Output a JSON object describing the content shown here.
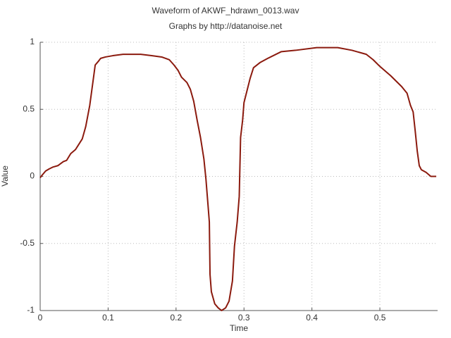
{
  "chart_data": {
    "type": "line",
    "title": "Waveform of AKWF_hdrawn_0013.wav",
    "subtitle": "Graphs by http://datanoise.net",
    "x_label": "Time",
    "y_label": "Value",
    "xlim": [
      0,
      0.585
    ],
    "ylim": [
      -1,
      1
    ],
    "xticks": [
      0,
      0.1,
      0.2,
      0.3,
      0.4,
      0.5
    ],
    "yticks": [
      -1,
      -0.5,
      0,
      0.5,
      1
    ],
    "grid": true,
    "series": [
      {
        "color": "#8b1a0e",
        "x": [
          0,
          0.003,
          0.008,
          0.013,
          0.019,
          0.026,
          0.034,
          0.039,
          0.045,
          0.052,
          0.057,
          0.062,
          0.067,
          0.073,
          0.077,
          0.081,
          0.086,
          0.089,
          0.096,
          0.107,
          0.122,
          0.148,
          0.164,
          0.179,
          0.19,
          0.197,
          0.203,
          0.208,
          0.216,
          0.221,
          0.226,
          0.231,
          0.236,
          0.241,
          0.244,
          0.247,
          0.249,
          0.25,
          0.252,
          0.257,
          0.262,
          0.267,
          0.273,
          0.278,
          0.283,
          0.286,
          0.29,
          0.293,
          0.295,
          0.298,
          0.3,
          0.304,
          0.309,
          0.314,
          0.324,
          0.335,
          0.355,
          0.376,
          0.407,
          0.438,
          0.459,
          0.48,
          0.49,
          0.5,
          0.516,
          0.532,
          0.54,
          0.545,
          0.549,
          0.552,
          0.555,
          0.558,
          0.561,
          0.568,
          0.575,
          0.583
        ],
        "values": [
          -0.01,
          0.01,
          0.04,
          0.055,
          0.07,
          0.08,
          0.11,
          0.12,
          0.17,
          0.2,
          0.24,
          0.28,
          0.37,
          0.53,
          0.68,
          0.83,
          0.86,
          0.88,
          0.89,
          0.9,
          0.91,
          0.91,
          0.9,
          0.89,
          0.87,
          0.83,
          0.79,
          0.74,
          0.7,
          0.65,
          0.56,
          0.42,
          0.29,
          0.13,
          -0.02,
          -0.21,
          -0.34,
          -0.73,
          -0.86,
          -0.95,
          -0.98,
          -1.0,
          -0.98,
          -0.93,
          -0.78,
          -0.52,
          -0.34,
          -0.15,
          0.29,
          0.42,
          0.55,
          0.63,
          0.73,
          0.81,
          0.85,
          0.88,
          0.93,
          0.94,
          0.96,
          0.96,
          0.94,
          0.91,
          0.87,
          0.82,
          0.75,
          0.67,
          0.62,
          0.53,
          0.48,
          0.34,
          0.19,
          0.08,
          0.05,
          0.03,
          0,
          0
        ]
      }
    ]
  }
}
